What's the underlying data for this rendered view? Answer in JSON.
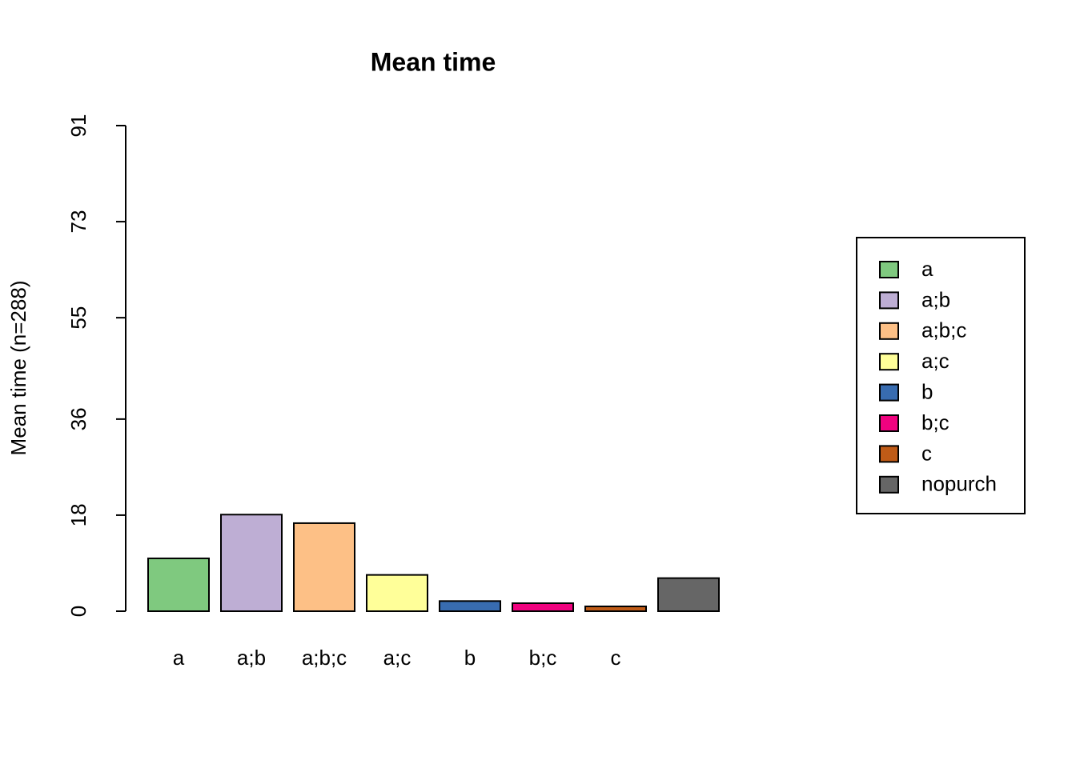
{
  "chart_data": {
    "type": "bar",
    "title": "Mean time",
    "ylabel": "Mean time (n=288)",
    "categories": [
      "a",
      "a;b",
      "a;b;c",
      "a;c",
      "b",
      "b;c",
      "c",
      null
    ],
    "values": [
      9.9,
      18.1,
      16.5,
      6.8,
      1.9,
      1.5,
      0.9,
      6.2
    ],
    "colors": [
      "#7FC97F",
      "#BEAED4",
      "#FDC086",
      "#FFFF99",
      "#386CB0",
      "#F0027F",
      "#BF5B17",
      "#666666"
    ],
    "legend_labels": [
      "a",
      "a;b",
      "a;b;c",
      "a;c",
      "b",
      "b;c",
      "c",
      "nopurch"
    ],
    "legend_position": "right",
    "ylim": [
      0,
      91
    ],
    "yticks": [
      0,
      18,
      36,
      55,
      73,
      91
    ],
    "grid": false
  }
}
